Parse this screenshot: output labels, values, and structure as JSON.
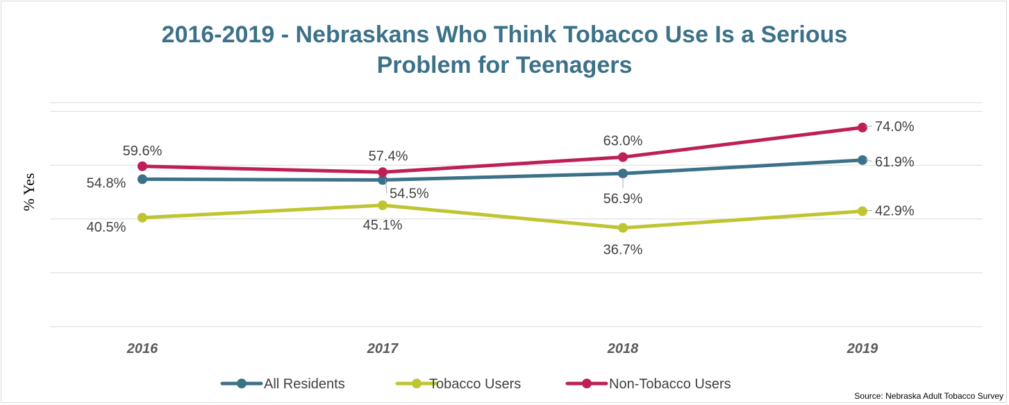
{
  "chart_data": {
    "type": "line",
    "title": "2016-2019 - Nebraskans Who Think Tobacco Use Is a Serious Problem for Teenagers",
    "title_lines": [
      "2016-2019 - Nebraskans Who Think Tobacco Use Is a Serious",
      "Problem for Teenagers"
    ],
    "ylabel": "% Yes",
    "xlabel": "",
    "categories": [
      "2016",
      "2017",
      "2018",
      "2019"
    ],
    "ylim": [
      0,
      100
    ],
    "grid": true,
    "legend": "bottom",
    "series": [
      {
        "name": "All Residents",
        "color": "#3b7189",
        "values": [
          54.8,
          54.5,
          56.9,
          61.9
        ],
        "labels": [
          "54.8%",
          "54.5%",
          "56.9%",
          "61.9%"
        ]
      },
      {
        "name": "Tobacco Users",
        "color": "#bfc531",
        "values": [
          40.5,
          45.1,
          36.7,
          42.9
        ],
        "labels": [
          "40.5%",
          "45.1%",
          "36.7%",
          "42.9%"
        ]
      },
      {
        "name": "Non-Tobacco Users",
        "color": "#bf1f57",
        "values": [
          59.6,
          57.4,
          63.0,
          74.0
        ],
        "labels": [
          "59.6%",
          "57.4%",
          "63.0%",
          "74.0%"
        ]
      }
    ],
    "source": "Source: Nebraska Adult Tobacco Survey"
  }
}
